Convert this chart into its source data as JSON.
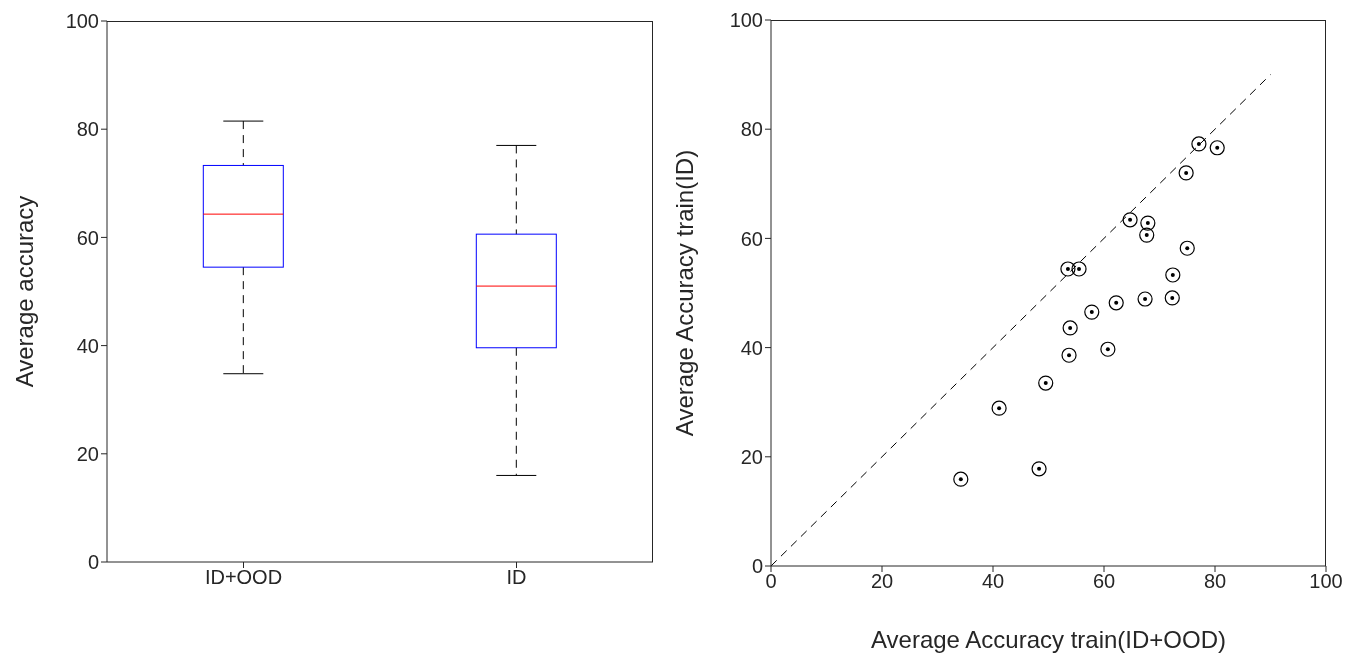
{
  "chart_data": [
    {
      "type": "box",
      "ylabel": "Average accuracy",
      "categories": [
        "ID+OOD",
        "ID"
      ],
      "color": "#0000ff",
      "boxes": [
        {
          "low": 34.8,
          "q1": 54.5,
          "median": 64.3,
          "q3": 73.3,
          "high": 81.5
        },
        {
          "low": 16,
          "q1": 39.6,
          "median": 51,
          "q3": 60.6,
          "high": 77
        }
      ],
      "ylim": [
        0,
        100
      ],
      "yticks": [
        0,
        20,
        40,
        60,
        80,
        100
      ],
      "grid": false,
      "legend": false
    },
    {
      "type": "scatter",
      "xlabel": "Average Accuracy train(ID+OOD)",
      "ylabel": "Average Accuracy train(ID)",
      "marker": "circle",
      "series": [
        {
          "type": "scatter",
          "color": "#000000",
          "x": [
            77.1,
            80.4,
            74.8,
            64.7,
            67.9,
            67.7,
            75.0,
            53.5,
            55.5,
            72.4,
            72.3,
            67.4,
            62.2,
            57.8,
            53.9,
            60.7,
            53.7,
            49.5,
            41.1,
            48.3,
            34.2
          ],
          "values": [
            77.3,
            76.6,
            72.0,
            63.4,
            62.8,
            60.6,
            58.2,
            54.4,
            54.4,
            53.3,
            49.1,
            48.9,
            48.2,
            46.5,
            43.6,
            39.7,
            38.6,
            33.5,
            28.9,
            17.8,
            15.9
          ]
        },
        {
          "type": "line",
          "color": "#000000",
          "line_style": "dashed",
          "marker": "none",
          "x": [
            0,
            90
          ],
          "values": [
            0,
            90
          ]
        }
      ],
      "xlim": [
        0,
        100
      ],
      "xticks": [
        0,
        20,
        40,
        60,
        80,
        100
      ],
      "ylim": [
        0,
        100
      ],
      "yticks": [
        0,
        20,
        40,
        60,
        80,
        100
      ],
      "grid": false,
      "legend": false
    }
  ]
}
